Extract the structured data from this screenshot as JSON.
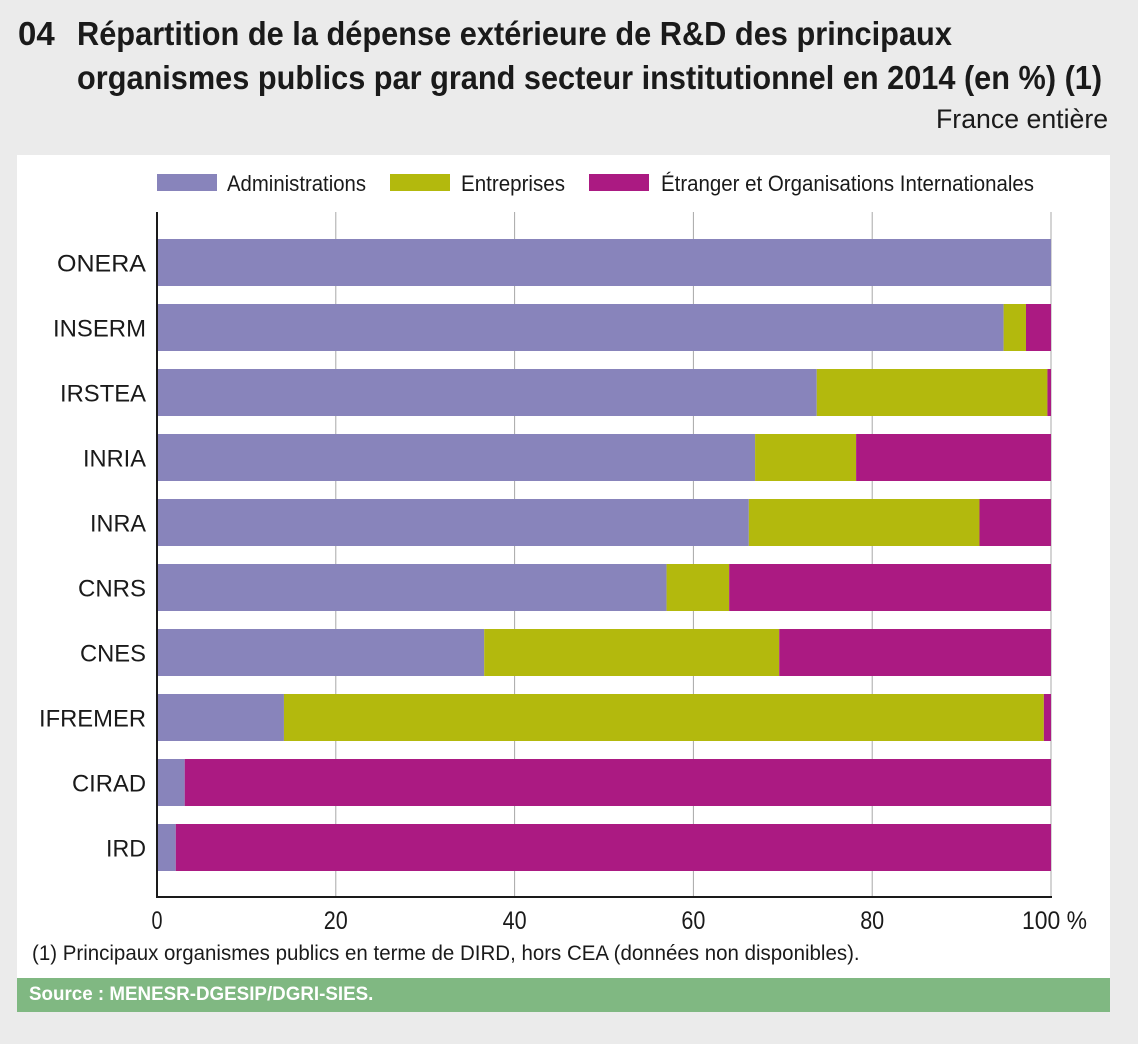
{
  "header": {
    "number": "04",
    "title_line1": "Répartition de la dépense extérieure de R&D des principaux",
    "title_line2": "organismes publics par grand secteur institutionnel en 2014 (en %) (1)",
    "subtitle": "France entière"
  },
  "footnote": "(1) Principaux organismes publics en terme de DIRD, hors CEA (données non disponibles).",
  "source": "Source : MENESR-DGESIP/DGRI-SIES.",
  "colors": {
    "background": "#ebebeb",
    "panel": "#ffffff",
    "source_bar": "#80b882"
  },
  "chart_data": {
    "type": "bar",
    "orientation": "horizontal",
    "stacked": true,
    "title": "Répartition de la dépense extérieure de R&D des principaux organismes publics par grand secteur institutionnel en 2014 (en %) (1)",
    "xlabel": "",
    "ylabel": "",
    "xlim": [
      0,
      100
    ],
    "x_ticks": [
      "0",
      "20",
      "40",
      "60",
      "80",
      "100 %"
    ],
    "x_tick_values": [
      0,
      20,
      40,
      60,
      80,
      100
    ],
    "grid": "vertical",
    "legend_position": "top",
    "categories": [
      "ONERA",
      "INSERM",
      "IRSTEA",
      "INRIA",
      "INRA",
      "CNRS",
      "CNES",
      "IFREMER",
      "CIRAD",
      "IRD"
    ],
    "series": [
      {
        "name": "Administrations",
        "color": "#8884bb",
        "values": [
          100.0,
          94.7,
          73.8,
          66.9,
          66.2,
          57.0,
          36.6,
          14.2,
          3.1,
          2.1
        ]
      },
      {
        "name": "Entreprises",
        "color": "#b3b90d",
        "values": [
          0.0,
          2.5,
          25.8,
          11.3,
          25.8,
          7.0,
          33.0,
          85.0,
          0.0,
          0.0
        ]
      },
      {
        "name": "Étranger et Organisations Internationales",
        "color": "#ab1a82",
        "values": [
          0.0,
          2.8,
          0.4,
          21.8,
          8.0,
          36.0,
          30.4,
          0.8,
          96.9,
          97.9
        ]
      }
    ]
  }
}
